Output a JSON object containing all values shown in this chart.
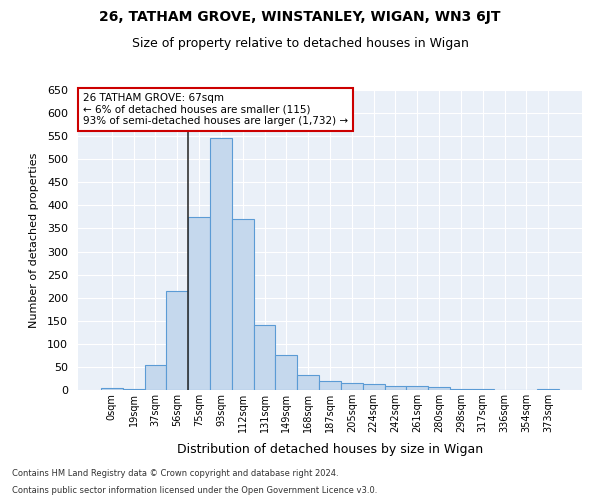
{
  "title_line1": "26, TATHAM GROVE, WINSTANLEY, WIGAN, WN3 6JT",
  "title_line2": "Size of property relative to detached houses in Wigan",
  "xlabel": "Distribution of detached houses by size in Wigan",
  "ylabel": "Number of detached properties",
  "bar_color": "#c5d8ed",
  "bar_edge_color": "#5b9bd5",
  "background_color": "#eaf0f8",
  "categories": [
    "0sqm",
    "19sqm",
    "37sqm",
    "56sqm",
    "75sqm",
    "93sqm",
    "112sqm",
    "131sqm",
    "149sqm",
    "168sqm",
    "187sqm",
    "205sqm",
    "224sqm",
    "242sqm",
    "261sqm",
    "280sqm",
    "298sqm",
    "317sqm",
    "336sqm",
    "354sqm",
    "373sqm"
  ],
  "values": [
    5,
    3,
    55,
    215,
    375,
    545,
    370,
    140,
    75,
    32,
    20,
    16,
    12,
    9,
    9,
    7,
    3,
    2,
    1,
    1,
    2
  ],
  "ylim": [
    0,
    650
  ],
  "yticks": [
    0,
    50,
    100,
    150,
    200,
    250,
    300,
    350,
    400,
    450,
    500,
    550,
    600,
    650
  ],
  "annotation_text": "26 TATHAM GROVE: 67sqm\n← 6% of detached houses are smaller (115)\n93% of semi-detached houses are larger (1,732) →",
  "annotation_box_color": "#ffffff",
  "annotation_box_edge": "#cc0000",
  "property_line_x": 3.5,
  "footnote_line1": "Contains HM Land Registry data © Crown copyright and database right 2024.",
  "footnote_line2": "Contains public sector information licensed under the Open Government Licence v3.0."
}
